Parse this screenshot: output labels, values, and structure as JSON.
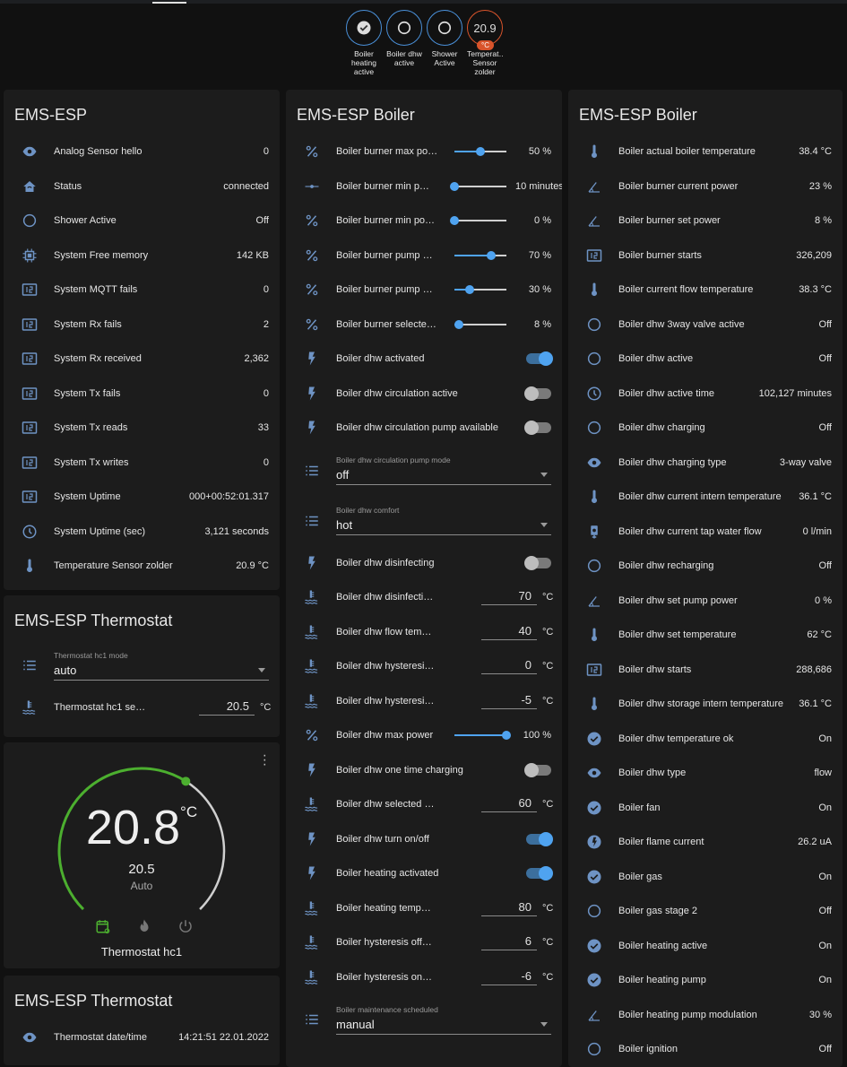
{
  "badges": [
    {
      "label": "Boiler heating active",
      "icon": "check-circle"
    },
    {
      "label": "Boiler dhw active",
      "icon": "circle"
    },
    {
      "label": "Shower Active",
      "icon": "circle"
    },
    {
      "label": "Temperat… Sensor zolder",
      "value": "20.9",
      "unit": "°C"
    }
  ],
  "cards": {
    "esp": {
      "title": "EMS-ESP",
      "rows": [
        {
          "icon": "eye",
          "name": "Analog Sensor hello",
          "value": "0"
        },
        {
          "icon": "home",
          "name": "Status",
          "value": "connected"
        },
        {
          "icon": "circle",
          "name": "Shower Active",
          "value": "Off"
        },
        {
          "icon": "chip",
          "name": "System Free memory",
          "value": "142 KB"
        },
        {
          "icon": "counter",
          "name": "System MQTT fails",
          "value": "0"
        },
        {
          "icon": "counter",
          "name": "System Rx fails",
          "value": "2"
        },
        {
          "icon": "counter",
          "name": "System Rx received",
          "value": "2,362"
        },
        {
          "icon": "counter",
          "name": "System Tx fails",
          "value": "0"
        },
        {
          "icon": "counter",
          "name": "System Tx reads",
          "value": "33"
        },
        {
          "icon": "counter",
          "name": "System Tx writes",
          "value": "0"
        },
        {
          "icon": "counter",
          "name": "System Uptime",
          "value": "000+00:52:01.317"
        },
        {
          "icon": "clock",
          "name": "System Uptime (sec)",
          "value": "3,121 seconds"
        },
        {
          "icon": "thermometer",
          "name": "Temperature Sensor zolder",
          "value": "20.9 °C"
        }
      ]
    },
    "thermo1": {
      "title": "EMS-ESP Thermostat",
      "rows": [
        {
          "type": "select",
          "icon": "list",
          "label": "Thermostat hc1 mode",
          "value": "auto"
        },
        {
          "type": "number",
          "icon": "water-thermometer",
          "name": "Thermostat hc1 se…",
          "value": "20.5",
          "unit": "°C"
        }
      ]
    },
    "climate": {
      "current": "20.8",
      "unit": "°C",
      "target": "20.5",
      "mode": "Auto",
      "name": "Thermostat hc1",
      "setpoint_fraction": 0.62,
      "accent": "#4caf2f"
    },
    "thermo2": {
      "title": "EMS-ESP Thermostat",
      "rows": [
        {
          "icon": "eye",
          "name": "Thermostat date/time",
          "value": "14:21:51 22.01.2022"
        }
      ]
    },
    "boiler1": {
      "title": "EMS-ESP Boiler",
      "rows": [
        {
          "type": "slider",
          "icon": "percent",
          "name": "Boiler burner max po…",
          "value": "50 %",
          "level": 0.5
        },
        {
          "type": "slider",
          "icon": "slider",
          "name": "Boiler burner min p…",
          "value": "10 minutes",
          "level": 0
        },
        {
          "type": "slider",
          "icon": "percent",
          "name": "Boiler burner min po…",
          "value": "0 %",
          "level": 0
        },
        {
          "type": "slider",
          "icon": "percent",
          "name": "Boiler burner pump …",
          "value": "70 %",
          "level": 0.7
        },
        {
          "type": "slider",
          "icon": "percent",
          "name": "Boiler burner pump …",
          "value": "30 %",
          "level": 0.3
        },
        {
          "type": "slider",
          "icon": "percent",
          "name": "Boiler burner selecte…",
          "value": "8 %",
          "level": 0.08
        },
        {
          "type": "toggle",
          "icon": "flash",
          "name": "Boiler dhw activated",
          "on": true
        },
        {
          "type": "toggle",
          "icon": "flash",
          "name": "Boiler dhw circulation active",
          "on": false
        },
        {
          "type": "toggle",
          "icon": "flash",
          "name": "Boiler dhw circulation pump available",
          "on": false
        },
        {
          "type": "select",
          "icon": "list",
          "label": "Boiler dhw circulation pump mode",
          "value": "off"
        },
        {
          "type": "select",
          "icon": "list",
          "label": "Boiler dhw comfort",
          "value": "hot"
        },
        {
          "type": "toggle",
          "icon": "flash",
          "name": "Boiler dhw disinfecting",
          "on": false
        },
        {
          "type": "number",
          "icon": "water-thermometer",
          "name": "Boiler dhw disinfecti…",
          "value": "70",
          "unit": "°C"
        },
        {
          "type": "number",
          "icon": "water-thermometer",
          "name": "Boiler dhw flow tem…",
          "value": "40",
          "unit": "°C"
        },
        {
          "type": "number",
          "icon": "water-thermometer",
          "name": "Boiler dhw hysteresi…",
          "value": "0",
          "unit": "°C"
        },
        {
          "type": "number",
          "icon": "water-thermometer",
          "name": "Boiler dhw hysteresi…",
          "value": "-5",
          "unit": "°C"
        },
        {
          "type": "slider",
          "icon": "percent",
          "name": "Boiler dhw max power",
          "value": "100 %",
          "level": 1
        },
        {
          "type": "toggle",
          "icon": "flash",
          "name": "Boiler dhw one time charging",
          "on": false
        },
        {
          "type": "number",
          "icon": "water-thermometer",
          "name": "Boiler dhw selected …",
          "value": "60",
          "unit": "°C"
        },
        {
          "type": "toggle",
          "icon": "flash",
          "name": "Boiler dhw turn on/off",
          "on": true
        },
        {
          "type": "toggle",
          "icon": "flash",
          "name": "Boiler heating activated",
          "on": true
        },
        {
          "type": "number",
          "icon": "water-thermometer",
          "name": "Boiler heating temp…",
          "value": "80",
          "unit": "°C"
        },
        {
          "type": "number",
          "icon": "water-thermometer",
          "name": "Boiler hysteresis off…",
          "value": "6",
          "unit": "°C"
        },
        {
          "type": "number",
          "icon": "water-thermometer",
          "name": "Boiler hysteresis on…",
          "value": "-6",
          "unit": "°C"
        },
        {
          "type": "select",
          "icon": "list",
          "label": "Boiler maintenance scheduled",
          "value": "manual"
        }
      ]
    },
    "boiler2": {
      "title": "EMS-ESP Boiler",
      "rows": [
        {
          "icon": "thermometer",
          "name": "Boiler actual boiler temperature",
          "value": "38.4 °C"
        },
        {
          "icon": "angle",
          "name": "Boiler burner current power",
          "value": "23 %"
        },
        {
          "icon": "angle",
          "name": "Boiler burner set power",
          "value": "8 %"
        },
        {
          "icon": "counter",
          "name": "Boiler burner starts",
          "value": "326,209"
        },
        {
          "icon": "thermometer",
          "name": "Boiler current flow temperature",
          "value": "38.3 °C"
        },
        {
          "icon": "circle",
          "name": "Boiler dhw 3way valve active",
          "value": "Off"
        },
        {
          "icon": "circle",
          "name": "Boiler dhw active",
          "value": "Off"
        },
        {
          "icon": "clock",
          "name": "Boiler dhw active time",
          "value": "102,127 minutes"
        },
        {
          "icon": "circle",
          "name": "Boiler dhw charging",
          "value": "Off"
        },
        {
          "icon": "eye",
          "name": "Boiler dhw charging type",
          "value": "3-way valve"
        },
        {
          "icon": "thermometer",
          "name": "Boiler dhw current intern temperature",
          "value": "36.1 °C"
        },
        {
          "icon": "water-pump",
          "name": "Boiler dhw current tap water flow",
          "value": "0 l/min"
        },
        {
          "icon": "circle",
          "name": "Boiler dhw recharging",
          "value": "Off"
        },
        {
          "icon": "angle",
          "name": "Boiler dhw set pump power",
          "value": "0 %"
        },
        {
          "icon": "thermometer",
          "name": "Boiler dhw set temperature",
          "value": "62 °C"
        },
        {
          "icon": "counter",
          "name": "Boiler dhw starts",
          "value": "288,686"
        },
        {
          "icon": "thermometer",
          "name": "Boiler dhw storage intern temperature",
          "value": "36.1 °C"
        },
        {
          "icon": "check-circle",
          "name": "Boiler dhw temperature ok",
          "value": "On"
        },
        {
          "icon": "eye",
          "name": "Boiler dhw type",
          "value": "flow"
        },
        {
          "icon": "check-circle",
          "name": "Boiler fan",
          "value": "On"
        },
        {
          "icon": "flash-circle",
          "name": "Boiler flame current",
          "value": "26.2 uA"
        },
        {
          "icon": "check-circle",
          "name": "Boiler gas",
          "value": "On"
        },
        {
          "icon": "circle",
          "name": "Boiler gas stage 2",
          "value": "Off"
        },
        {
          "icon": "check-circle",
          "name": "Boiler heating active",
          "value": "On"
        },
        {
          "icon": "check-circle",
          "name": "Boiler heating pump",
          "value": "On"
        },
        {
          "icon": "angle",
          "name": "Boiler heating pump modulation",
          "value": "30 %"
        },
        {
          "icon": "circle",
          "name": "Boiler ignition",
          "value": "Off"
        }
      ]
    }
  },
  "colors": {
    "icon": "#6e93c4",
    "accent": "#4fa3f0",
    "orange": "#d9542b",
    "green": "#4caf2f"
  }
}
